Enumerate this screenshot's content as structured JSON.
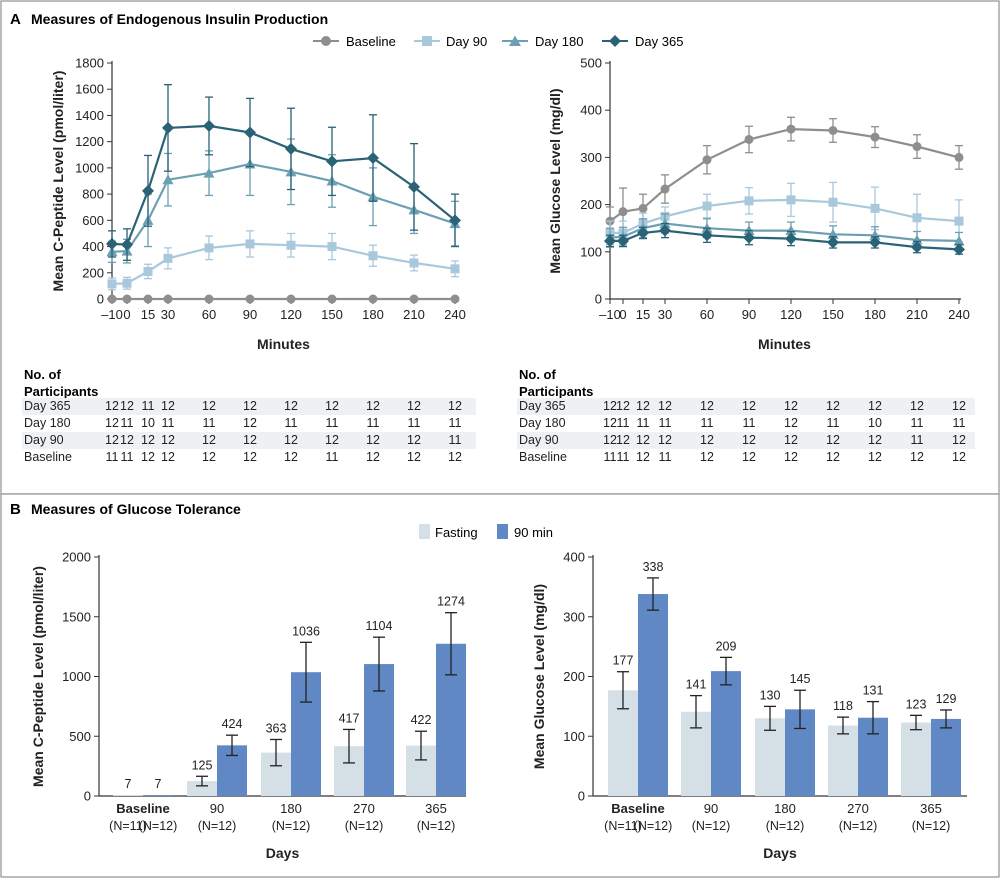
{
  "panel_a": {
    "letter": "A",
    "title": "Measures of Endogenous Insulin Production",
    "legend": [
      {
        "label": "Baseline",
        "color": "#8e8e8e",
        "marker": "circle"
      },
      {
        "label": "Day 90",
        "color": "#a9c8dc",
        "marker": "square"
      },
      {
        "label": "Day 180",
        "color": "#6d9fb2",
        "marker": "triangle"
      },
      {
        "label": "Day 365",
        "color": "#2a6276",
        "marker": "diamond"
      }
    ],
    "participants_title_line1": "No. of",
    "participants_title_line2": "Participants",
    "tables": [
      {
        "rows": [
          {
            "label": "Day 365",
            "values": [
              12,
              12,
              11,
              12,
              12,
              12,
              12,
              12,
              12,
              12,
              12
            ]
          },
          {
            "label": "Day 180",
            "values": [
              12,
              11,
              10,
              11,
              11,
              12,
              11,
              11,
              11,
              11,
              11
            ]
          },
          {
            "label": "Day 90",
            "values": [
              12,
              12,
              12,
              12,
              12,
              12,
              12,
              12,
              12,
              12,
              11
            ]
          },
          {
            "label": "Baseline",
            "values": [
              11,
              11,
              12,
              12,
              12,
              12,
              12,
              11,
              12,
              12,
              12
            ]
          }
        ]
      },
      {
        "rows": [
          {
            "label": "Day 365",
            "values": [
              12,
              12,
              12,
              12,
              12,
              12,
              12,
              12,
              12,
              12,
              12
            ]
          },
          {
            "label": "Day 180",
            "values": [
              12,
              11,
              11,
              11,
              11,
              11,
              12,
              11,
              10,
              11,
              11
            ]
          },
          {
            "label": "Day 90",
            "values": [
              12,
              12,
              12,
              12,
              12,
              12,
              12,
              12,
              12,
              11,
              12
            ]
          },
          {
            "label": "Baseline",
            "values": [
              11,
              11,
              12,
              11,
              12,
              12,
              12,
              12,
              12,
              12,
              12
            ]
          }
        ]
      }
    ]
  },
  "panel_b": {
    "letter": "B",
    "title": "Measures of Glucose Tolerance",
    "legend": [
      {
        "label": "Fasting",
        "color": "#d5e0e6"
      },
      {
        "label": "90 min",
        "color": "#6088c4"
      }
    ]
  },
  "chart_data": [
    {
      "type": "line",
      "title": "",
      "xlabel": "Minutes",
      "ylabel": "Mean C-Peptide Level (pmol/liter)",
      "x": [
        -10,
        0,
        15,
        30,
        60,
        90,
        120,
        150,
        180,
        210,
        240
      ],
      "x_tick_labels": [
        "–10",
        "0",
        "15",
        "30",
        "60",
        "90",
        "120",
        "150",
        "180",
        "210",
        "240"
      ],
      "ylim": [
        0,
        1800
      ],
      "y_ticks": [
        0,
        200,
        400,
        600,
        800,
        1000,
        1200,
        1400,
        1600,
        1800
      ],
      "series": [
        {
          "name": "Baseline",
          "color": "#8e8e8e",
          "marker": "circle",
          "values": [
            0,
            0,
            0,
            0,
            0,
            0,
            0,
            0,
            0,
            0,
            0
          ],
          "error": [
            0,
            0,
            0,
            0,
            0,
            0,
            0,
            0,
            0,
            0,
            0
          ]
        },
        {
          "name": "Day 90",
          "color": "#a9c8dc",
          "marker": "square",
          "values": [
            115,
            120,
            210,
            310,
            390,
            420,
            410,
            400,
            330,
            275,
            230
          ],
          "error": [
            45,
            45,
            55,
            80,
            90,
            100,
            90,
            100,
            80,
            60,
            60
          ]
        },
        {
          "name": "Day 180",
          "color": "#6d9fb2",
          "marker": "triangle",
          "values": [
            360,
            365,
            600,
            910,
            960,
            1030,
            970,
            900,
            780,
            680,
            575
          ],
          "error": [
            80,
            90,
            200,
            200,
            170,
            240,
            250,
            200,
            220,
            180,
            170
          ]
        },
        {
          "name": "Day 365",
          "color": "#2a6276",
          "marker": "diamond",
          "values": [
            420,
            415,
            825,
            1305,
            1320,
            1270,
            1145,
            1050,
            1075,
            855,
            600
          ],
          "error": [
            100,
            120,
            270,
            330,
            220,
            260,
            310,
            260,
            330,
            330,
            200
          ]
        }
      ]
    },
    {
      "type": "line",
      "title": "",
      "xlabel": "Minutes",
      "ylabel": "Mean Glucose Level (mg/dl)",
      "x": [
        -10,
        0,
        15,
        30,
        60,
        90,
        120,
        150,
        180,
        210,
        240
      ],
      "x_tick_labels": [
        "–10",
        "0",
        "15",
        "30",
        "60",
        "90",
        "120",
        "150",
        "180",
        "210",
        "240"
      ],
      "ylim": [
        0,
        500
      ],
      "y_ticks": [
        0,
        100,
        200,
        300,
        400,
        500
      ],
      "series": [
        {
          "name": "Baseline",
          "color": "#8e8e8e",
          "marker": "circle",
          "values": [
            165,
            185,
            192,
            233,
            295,
            338,
            360,
            357,
            343,
            323,
            300
          ],
          "error": [
            30,
            50,
            30,
            30,
            30,
            28,
            25,
            25,
            22,
            25,
            25
          ]
        },
        {
          "name": "Day 90",
          "color": "#a9c8dc",
          "marker": "square",
          "values": [
            140,
            140,
            160,
            175,
            197,
            208,
            210,
            205,
            192,
            172,
            165
          ],
          "error": [
            25,
            25,
            22,
            20,
            25,
            28,
            35,
            42,
            45,
            50,
            45
          ]
        },
        {
          "name": "Day 180",
          "color": "#6d9fb2",
          "marker": "triangle",
          "values": [
            130,
            132,
            150,
            160,
            150,
            145,
            145,
            137,
            135,
            125,
            123
          ],
          "error": [
            20,
            20,
            20,
            20,
            20,
            18,
            18,
            18,
            18,
            18,
            18
          ]
        },
        {
          "name": "Day 365",
          "color": "#2a6276",
          "marker": "diamond",
          "values": [
            123,
            123,
            140,
            145,
            135,
            130,
            128,
            120,
            120,
            110,
            105
          ],
          "error": [
            12,
            12,
            12,
            15,
            15,
            15,
            15,
            12,
            12,
            12,
            10
          ]
        }
      ]
    },
    {
      "type": "bar",
      "title": "",
      "xlabel": "Days",
      "ylabel": "Mean C-Peptide Level (pmol/liter)",
      "ylim": [
        0,
        2000
      ],
      "y_ticks": [
        0,
        500,
        1000,
        1500,
        2000
      ],
      "groups": [
        {
          "label": "Baseline",
          "bold": true,
          "sub": [
            "(N=11)",
            "(N=12)"
          ]
        },
        {
          "label": "90",
          "bold": false,
          "sub": [
            "(N=12)"
          ]
        },
        {
          "label": "180",
          "bold": false,
          "sub": [
            "(N=12)"
          ]
        },
        {
          "label": "270",
          "bold": false,
          "sub": [
            "(N=12)"
          ]
        },
        {
          "label": "365",
          "bold": false,
          "sub": [
            "(N=12)"
          ]
        }
      ],
      "series": [
        {
          "name": "Fasting",
          "color": "#d5e0e6",
          "values": [
            7,
            125,
            363,
            417,
            422
          ],
          "error": [
            0,
            40,
            110,
            140,
            120
          ],
          "labels": [
            "7",
            "125",
            "363",
            "417",
            "422"
          ]
        },
        {
          "name": "90 min",
          "color": "#6088c4",
          "values": [
            7,
            424,
            1036,
            1104,
            1274
          ],
          "error": [
            0,
            85,
            250,
            225,
            260
          ],
          "labels": [
            "7",
            "424",
            "1036",
            "1104",
            "1274"
          ]
        }
      ]
    },
    {
      "type": "bar",
      "title": "",
      "xlabel": "Days",
      "ylabel": "Mean Glucose Level (mg/dl)",
      "ylim": [
        0,
        400
      ],
      "y_ticks": [
        0,
        100,
        200,
        300,
        400
      ],
      "groups": [
        {
          "label": "Baseline",
          "bold": true,
          "sub": [
            "(N=11)",
            "(N=12)"
          ]
        },
        {
          "label": "90",
          "bold": false,
          "sub": [
            "(N=12)"
          ]
        },
        {
          "label": "180",
          "bold": false,
          "sub": [
            "(N=12)"
          ]
        },
        {
          "label": "270",
          "bold": false,
          "sub": [
            "(N=12)"
          ]
        },
        {
          "label": "365",
          "bold": false,
          "sub": [
            "(N=12)"
          ]
        }
      ],
      "series": [
        {
          "name": "Fasting",
          "color": "#d5e0e6",
          "values": [
            177,
            141,
            130,
            118,
            123
          ],
          "error": [
            31,
            27,
            20,
            14,
            12
          ],
          "labels": [
            "177",
            "141",
            "130",
            "118",
            "123"
          ]
        },
        {
          "name": "90 min",
          "color": "#6088c4",
          "values": [
            338,
            209,
            145,
            131,
            129
          ],
          "error": [
            27,
            23,
            32,
            27,
            15
          ],
          "labels": [
            "338",
            "209",
            "145",
            "131",
            "129"
          ]
        }
      ]
    }
  ]
}
